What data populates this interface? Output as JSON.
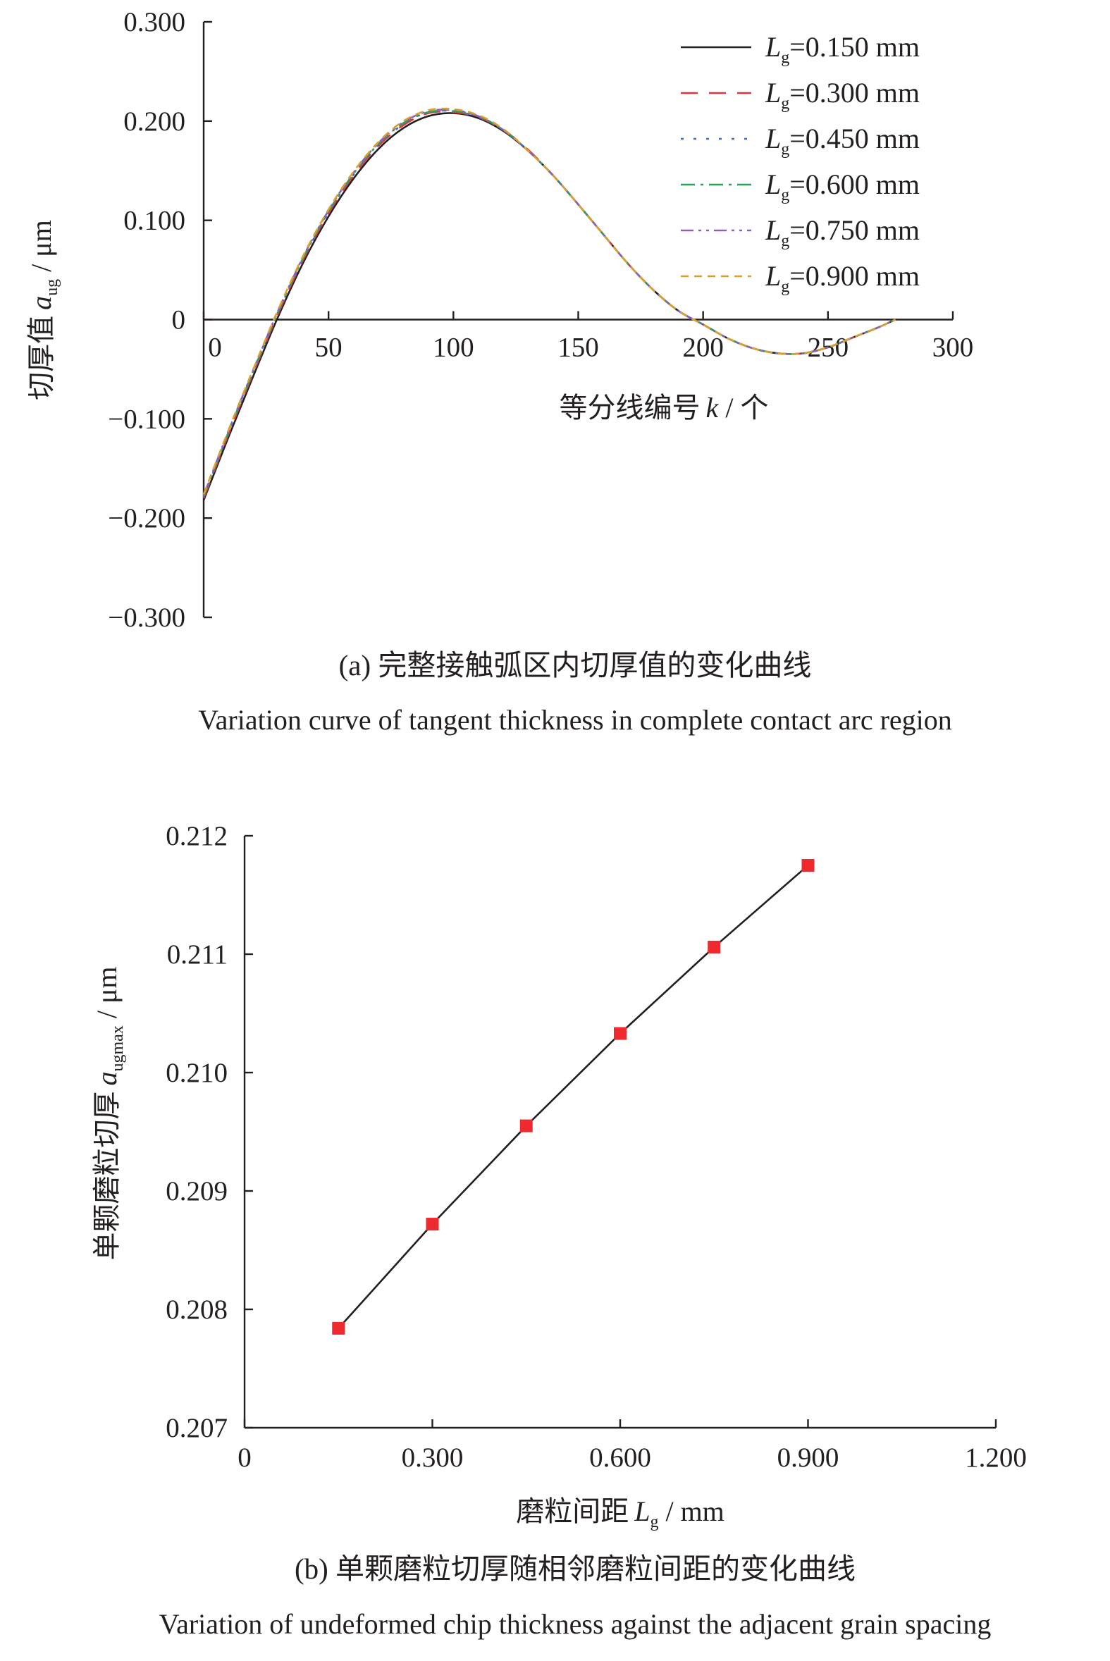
{
  "colors": {
    "axis": "#231f20",
    "series": [
      "#231f20",
      "#e8323c",
      "#3b6fb6",
      "#2e9e5b",
      "#8a63b8",
      "#d9a02c"
    ],
    "marker": "#ee2a2f"
  },
  "chart_data": [
    {
      "type": "line",
      "title": "",
      "caption_zh": "(a) 完整接触弧区内切厚值的变化曲线",
      "caption_en": "Variation curve of tangent thickness in complete contact arc region",
      "xlabel_zh": "等分线编号",
      "xlabel_var": "k",
      "xlabel_unit": " / 个",
      "ylabel_zh": "切厚值",
      "ylabel_var": "a",
      "ylabel_sub": "ug",
      "ylabel_unit": " / μm",
      "xlim": [
        0,
        300
      ],
      "ylim": [
        -0.3,
        0.3
      ],
      "x_ticks": [
        0,
        50,
        100,
        150,
        200,
        250,
        300
      ],
      "x_tick_labels": [
        "0",
        "50",
        "100",
        "150",
        "200",
        "250",
        "300"
      ],
      "y_ticks": [
        0.3,
        0.2,
        0.1,
        0,
        -0.1,
        -0.2,
        -0.3
      ],
      "y_tick_labels": [
        "0.300",
        "0.200",
        "0.100",
        "0",
        "−0.100",
        "−0.200",
        "−0.300"
      ],
      "legend_position": "top-right",
      "legend_var": "L",
      "legend_sub": "g",
      "x": [
        0,
        10,
        20,
        30,
        40,
        50,
        60,
        70,
        80,
        90,
        100,
        110,
        120,
        130,
        140,
        150,
        160,
        170,
        180,
        190,
        200,
        210,
        220,
        230,
        240,
        250,
        260,
        270,
        277
      ],
      "series": [
        {
          "name": "=0.150 mm",
          "dash": "solid",
          "values": [
            -0.182,
            -0.118,
            -0.056,
            0.004,
            0.058,
            0.104,
            0.142,
            0.172,
            0.193,
            0.205,
            0.208,
            0.203,
            0.19,
            0.17,
            0.145,
            0.116,
            0.086,
            0.056,
            0.03,
            0.009,
            -0.005,
            -0.019,
            -0.029,
            -0.034,
            -0.034,
            -0.028,
            -0.018,
            -0.008,
            0.0
          ]
        },
        {
          "name": "=0.300 mm",
          "dash": "long-dash",
          "values": [
            -0.18,
            -0.115,
            -0.053,
            0.007,
            0.061,
            0.107,
            0.145,
            0.175,
            0.196,
            0.208,
            0.209,
            0.204,
            0.191,
            0.171,
            0.145,
            0.116,
            0.086,
            0.056,
            0.03,
            0.009,
            -0.005,
            -0.019,
            -0.029,
            -0.034,
            -0.034,
            -0.028,
            -0.018,
            -0.008,
            0.0
          ]
        },
        {
          "name": "=0.450 mm",
          "dash": "dot",
          "values": [
            -0.179,
            -0.114,
            -0.052,
            0.008,
            0.062,
            0.108,
            0.146,
            0.176,
            0.197,
            0.209,
            0.21,
            0.204,
            0.191,
            0.17,
            0.145,
            0.116,
            0.086,
            0.056,
            0.03,
            0.009,
            -0.005,
            -0.019,
            -0.029,
            -0.034,
            -0.034,
            -0.028,
            -0.018,
            -0.008,
            0.0
          ]
        },
        {
          "name": "=0.600 mm",
          "dash": "dash-dot",
          "values": [
            -0.178,
            -0.113,
            -0.051,
            0.009,
            0.063,
            0.109,
            0.147,
            0.177,
            0.198,
            0.209,
            0.21,
            0.205,
            0.191,
            0.17,
            0.145,
            0.116,
            0.086,
            0.056,
            0.03,
            0.009,
            -0.005,
            -0.019,
            -0.029,
            -0.034,
            -0.034,
            -0.028,
            -0.018,
            -0.008,
            0.0
          ]
        },
        {
          "name": "=0.750 mm",
          "dash": "dash-dot-dot",
          "values": [
            -0.177,
            -0.112,
            -0.05,
            0.01,
            0.064,
            0.11,
            0.148,
            0.178,
            0.199,
            0.21,
            0.211,
            0.205,
            0.191,
            0.17,
            0.145,
            0.116,
            0.086,
            0.056,
            0.03,
            0.009,
            -0.005,
            -0.019,
            -0.029,
            -0.034,
            -0.034,
            -0.028,
            -0.018,
            -0.008,
            0.0
          ]
        },
        {
          "name": "=0.900 mm",
          "dash": "short-dash",
          "values": [
            -0.176,
            -0.111,
            -0.049,
            0.011,
            0.065,
            0.111,
            0.149,
            0.179,
            0.2,
            0.211,
            0.212,
            0.206,
            0.192,
            0.17,
            0.145,
            0.116,
            0.086,
            0.056,
            0.03,
            0.009,
            -0.005,
            -0.019,
            -0.029,
            -0.034,
            -0.034,
            -0.028,
            -0.018,
            -0.008,
            0.0
          ]
        }
      ]
    },
    {
      "type": "line",
      "title": "",
      "caption_zh": "(b) 单颗磨粒切厚随相邻磨粒间距的变化曲线",
      "caption_en": "Variation of undeformed chip thickness against the adjacent grain spacing",
      "xlabel_zh": "磨粒间距",
      "xlabel_var": "L",
      "xlabel_sub": "g",
      "xlabel_unit": " / mm",
      "ylabel_zh": "单颗磨粒切厚",
      "ylabel_var": "a",
      "ylabel_sub": "ugmax",
      "ylabel_unit": " / μm",
      "xlim": [
        0,
        1.2
      ],
      "ylim": [
        0.207,
        0.212
      ],
      "x_ticks": [
        0,
        0.3,
        0.6,
        0.9,
        1.2
      ],
      "x_tick_labels": [
        "0",
        "0.300",
        "0.600",
        "0.900",
        "1.200"
      ],
      "y_ticks": [
        0.212,
        0.211,
        0.21,
        0.209,
        0.208,
        0.207
      ],
      "y_tick_labels": [
        "0.212",
        "0.211",
        "0.210",
        "0.209",
        "0.208",
        "0.207"
      ],
      "x": [
        0.15,
        0.3,
        0.45,
        0.6,
        0.75,
        0.9
      ],
      "values": [
        0.20784,
        0.20872,
        0.20955,
        0.21033,
        0.21106,
        0.21175
      ]
    }
  ]
}
